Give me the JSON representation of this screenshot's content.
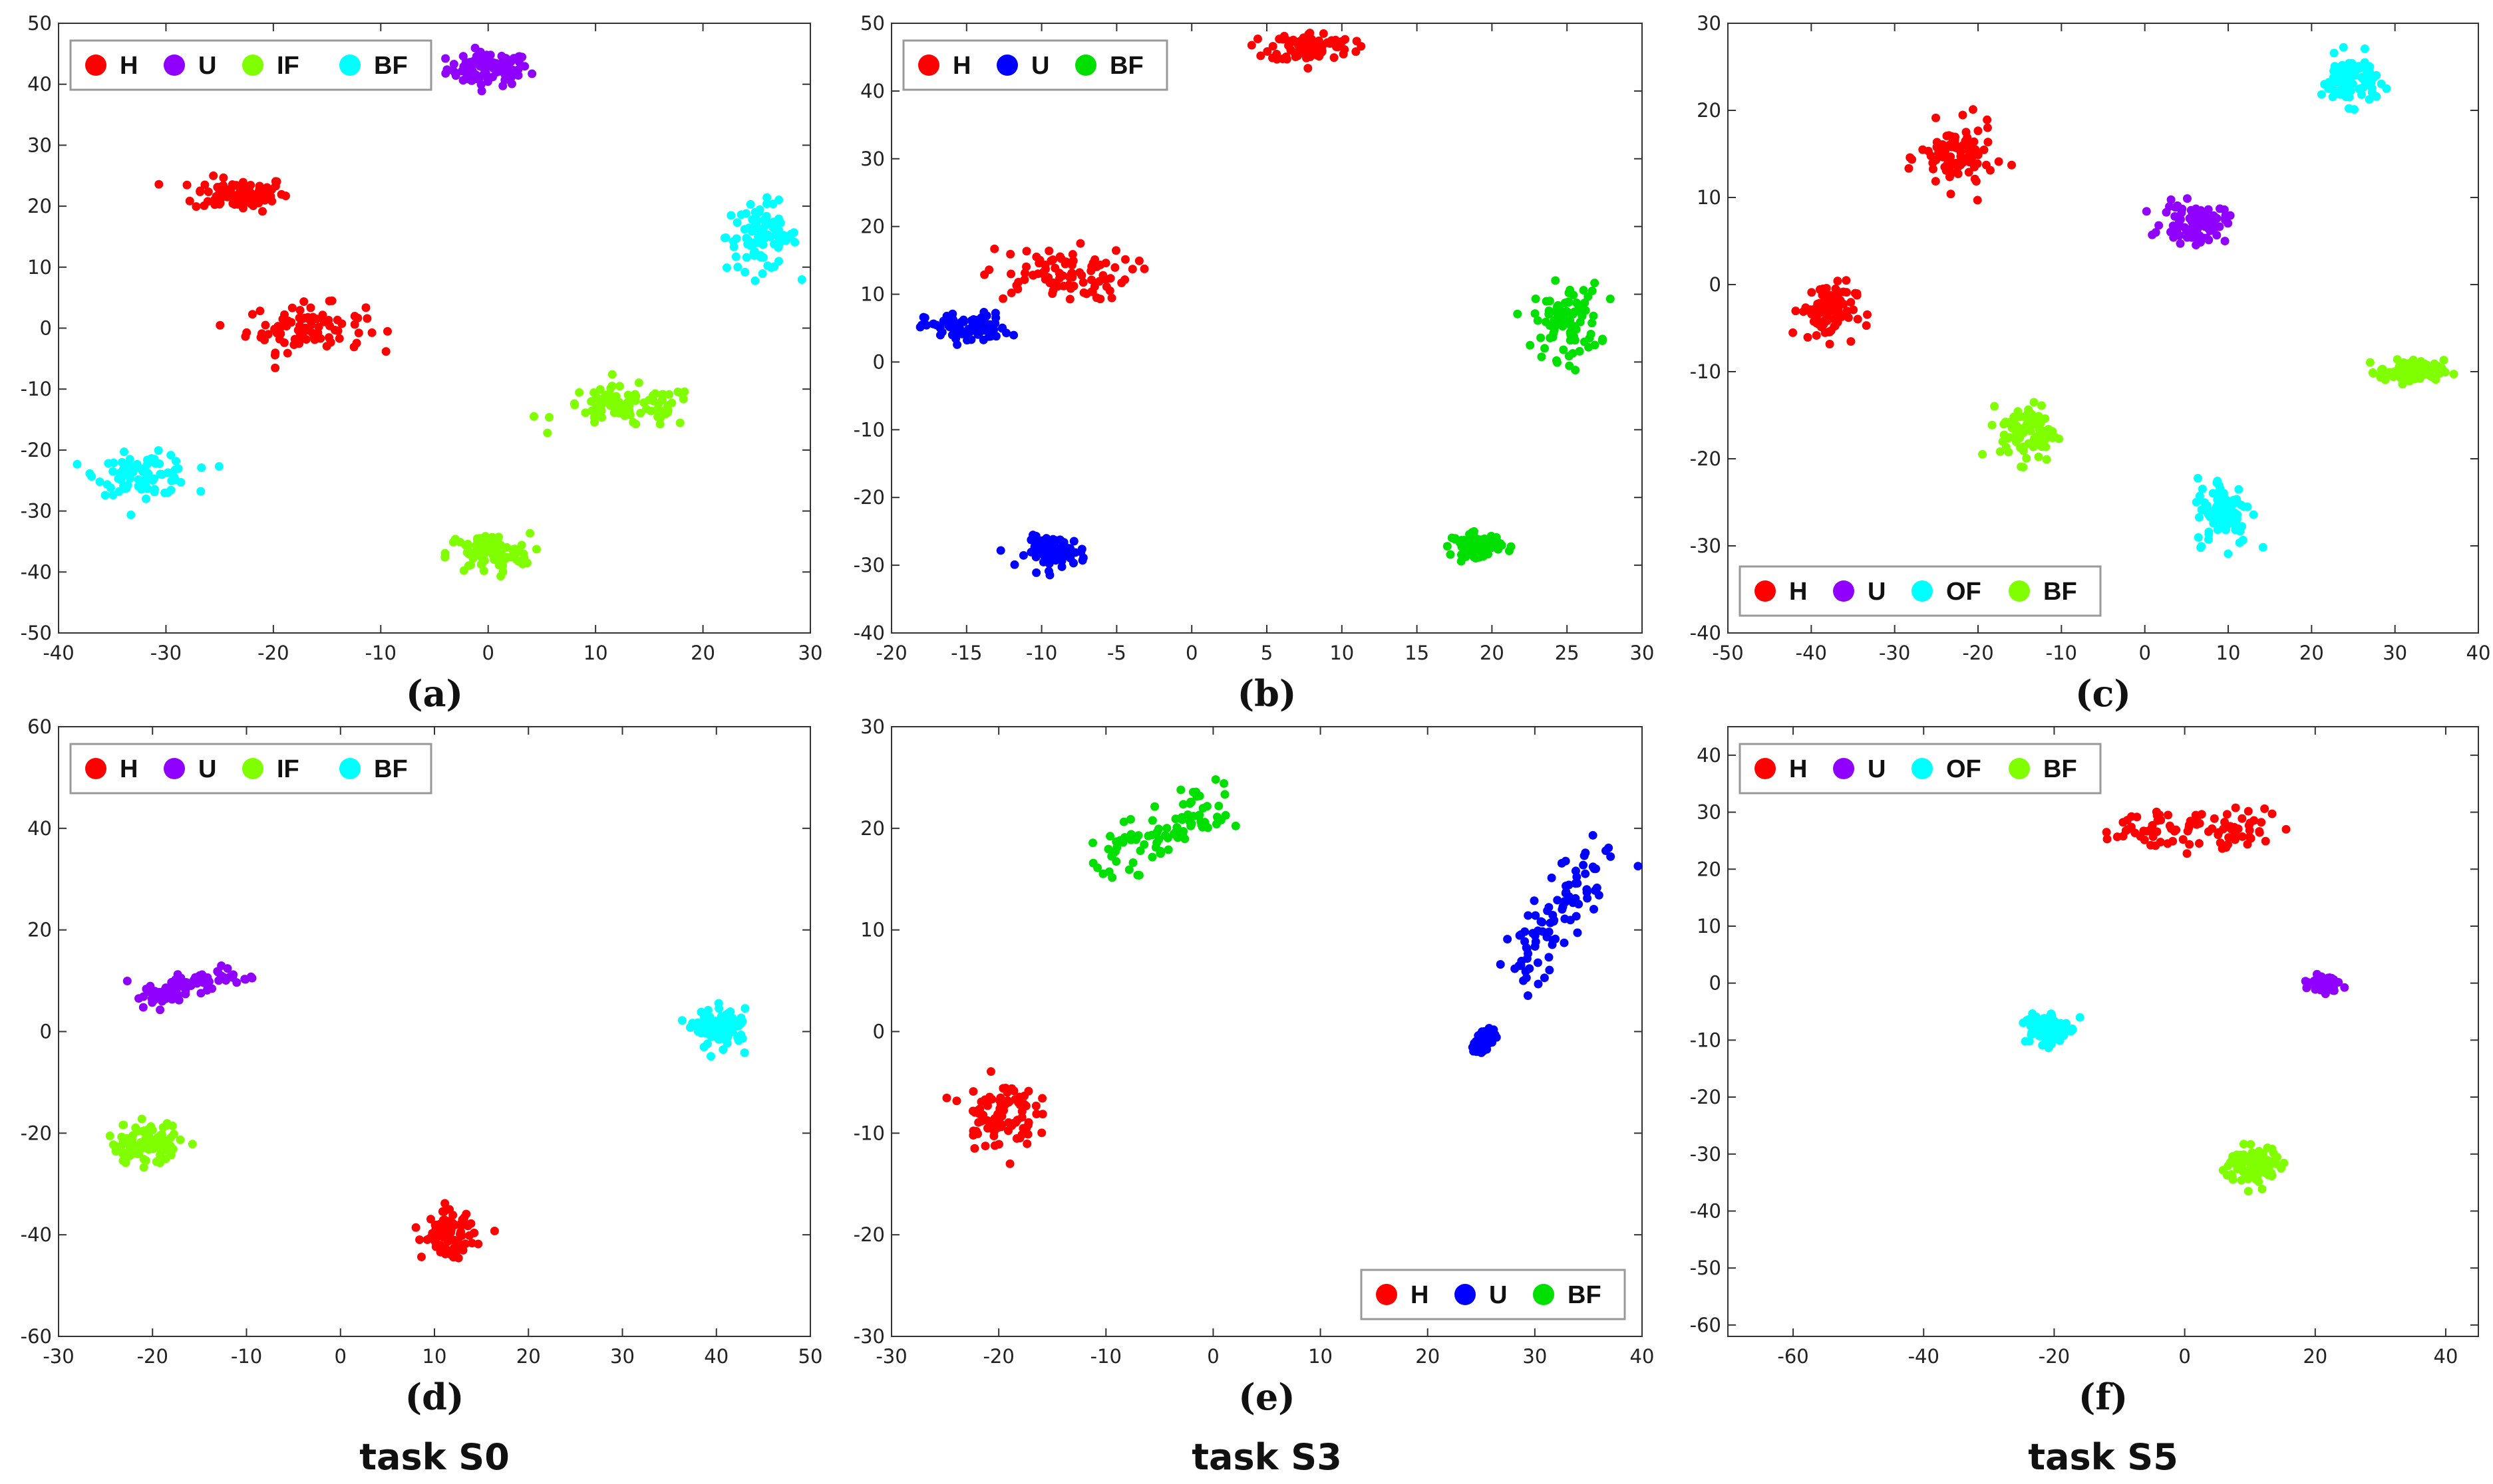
{
  "chart_data": [
    {
      "type": "scatter",
      "panel": "a",
      "caption": "(a)",
      "task_label": "",
      "xlim": [
        -40,
        30
      ],
      "ylim": [
        -50,
        50
      ],
      "xticks": [
        -40,
        -30,
        -20,
        -10,
        0,
        10,
        20,
        30
      ],
      "yticks": [
        -50,
        -40,
        -30,
        -20,
        -10,
        0,
        10,
        20,
        30,
        40,
        50
      ],
      "legend": {
        "placement": "top-left",
        "items": [
          {
            "label": "H",
            "color": "#ff0000"
          },
          {
            "label": "U",
            "color": "#8f00ff"
          },
          {
            "label": "IF",
            "color": "#7fff00"
          },
          {
            "label": "BF",
            "color": "#00ffff"
          }
        ]
      },
      "clusters": [
        {
          "label": "U",
          "color": "#8f00ff",
          "cx": 0,
          "cy": 42.5,
          "sx": 3.5,
          "sy": 2.5
        },
        {
          "label": "H",
          "color": "#ff0000",
          "cx": -23,
          "cy": 22,
          "sx": 4,
          "sy": 2.5
        },
        {
          "label": "H",
          "color": "#ff0000",
          "cx": -17,
          "cy": 0,
          "sx": 5,
          "sy": 3.5
        },
        {
          "label": "BF",
          "color": "#00ffff",
          "cx": 25.5,
          "cy": 15,
          "sx": 3,
          "sy": 5
        },
        {
          "label": "IF",
          "color": "#7fff00",
          "cx": 13,
          "cy": -13,
          "sx": 6,
          "sy": 3
        },
        {
          "label": "BF",
          "color": "#00ffff",
          "cx": -32,
          "cy": -24,
          "sx": 4,
          "sy": 3
        },
        {
          "label": "IF",
          "color": "#7fff00",
          "cx": 0,
          "cy": -37,
          "sx": 3.5,
          "sy": 3
        }
      ]
    },
    {
      "type": "scatter",
      "panel": "b",
      "caption": "(b)",
      "task_label": "",
      "xlim": [
        -20,
        30
      ],
      "ylim": [
        -40,
        50
      ],
      "xticks": [
        -20,
        -15,
        -10,
        -5,
        0,
        5,
        10,
        15,
        20,
        25,
        30
      ],
      "yticks": [
        -40,
        -30,
        -20,
        -10,
        0,
        10,
        20,
        30,
        40,
        50
      ],
      "legend": {
        "placement": "top-left",
        "items": [
          {
            "label": "H",
            "color": "#ff0000"
          },
          {
            "label": "U",
            "color": "#0000ff"
          },
          {
            "label": "BF",
            "color": "#00e000"
          }
        ]
      },
      "clusters": [
        {
          "label": "H",
          "color": "#ff0000",
          "cx": 8,
          "cy": 46.5,
          "sx": 2.5,
          "sy": 2
        },
        {
          "label": "H",
          "color": "#ff0000",
          "cx": -9,
          "cy": 13,
          "sx": 4.5,
          "sy": 3.5
        },
        {
          "label": "U",
          "color": "#0000ff",
          "cx": -15,
          "cy": 5,
          "sx": 2.5,
          "sy": 2
        },
        {
          "label": "BF",
          "color": "#00e000",
          "cx": 25,
          "cy": 6,
          "sx": 2,
          "sy": 5
        },
        {
          "label": "U",
          "color": "#0000ff",
          "cx": -9,
          "cy": -28,
          "sx": 1.8,
          "sy": 2
        },
        {
          "label": "BF",
          "color": "#00e000",
          "cx": 19,
          "cy": -27,
          "sx": 1.5,
          "sy": 1.5
        }
      ]
    },
    {
      "type": "scatter",
      "panel": "c",
      "caption": "(c)",
      "task_label": "",
      "xlim": [
        -50,
        40
      ],
      "ylim": [
        -40,
        30
      ],
      "xticks": [
        -50,
        -40,
        -30,
        -20,
        -10,
        0,
        10,
        20,
        30,
        40
      ],
      "yticks": [
        -40,
        -30,
        -20,
        -10,
        0,
        10,
        20,
        30
      ],
      "legend": {
        "placement": "bottom-left",
        "items": [
          {
            "label": "H",
            "color": "#ff0000"
          },
          {
            "label": "U",
            "color": "#8f00ff"
          },
          {
            "label": "OF",
            "color": "#00ffff"
          },
          {
            "label": "BF",
            "color": "#7fff00"
          }
        ]
      },
      "clusters": [
        {
          "label": "OF",
          "color": "#00ffff",
          "cx": 24.5,
          "cy": 23.5,
          "sx": 3,
          "sy": 2.5
        },
        {
          "label": "H",
          "color": "#ff0000",
          "cx": -22.5,
          "cy": 14.5,
          "sx": 4,
          "sy": 3.5
        },
        {
          "label": "U",
          "color": "#8f00ff",
          "cx": 6,
          "cy": 7,
          "sx": 3.5,
          "sy": 2
        },
        {
          "label": "H",
          "color": "#ff0000",
          "cx": -38,
          "cy": -3,
          "sx": 3,
          "sy": 3
        },
        {
          "label": "BF",
          "color": "#7fff00",
          "cx": 32,
          "cy": -10,
          "sx": 3.5,
          "sy": 1.2
        },
        {
          "label": "BF",
          "color": "#7fff00",
          "cx": -14,
          "cy": -17,
          "sx": 3,
          "sy": 3
        },
        {
          "label": "OF",
          "color": "#00ffff",
          "cx": 9.5,
          "cy": -26,
          "sx": 3,
          "sy": 3.5
        }
      ]
    },
    {
      "type": "scatter",
      "panel": "d",
      "caption": "(d)",
      "task_label": "task S0",
      "xlim": [
        -30,
        50
      ],
      "ylim": [
        -60,
        60
      ],
      "xticks": [
        -30,
        -20,
        -10,
        0,
        10,
        20,
        30,
        40,
        50
      ],
      "yticks": [
        -60,
        -40,
        -20,
        0,
        20,
        40,
        60
      ],
      "legend": {
        "placement": "top-left",
        "items": [
          {
            "label": "H",
            "color": "#ff0000"
          },
          {
            "label": "U",
            "color": "#8f00ff"
          },
          {
            "label": "IF",
            "color": "#7fff00"
          },
          {
            "label": "BF",
            "color": "#00ffff"
          }
        ]
      },
      "clusters": [
        {
          "label": "U",
          "color": "#8f00ff",
          "x0": -21,
          "y0": 6,
          "x1": -11,
          "y1": 12,
          "spread": 1.2
        },
        {
          "label": "BF",
          "color": "#00ffff",
          "cx": 40.5,
          "cy": 0.5,
          "sx": 2.5,
          "sy": 3.5
        },
        {
          "label": "IF",
          "color": "#7fff00",
          "cx": -21,
          "cy": -22,
          "sx": 3.5,
          "sy": 3.5
        },
        {
          "label": "H",
          "color": "#ff0000",
          "cx": 11.5,
          "cy": -40,
          "sx": 2.5,
          "sy": 4
        }
      ]
    },
    {
      "type": "scatter",
      "panel": "e",
      "caption": "(e)",
      "task_label": "task S3",
      "xlim": [
        -30,
        40
      ],
      "ylim": [
        -30,
        30
      ],
      "xticks": [
        -30,
        -20,
        -10,
        0,
        10,
        20,
        30,
        40
      ],
      "yticks": [
        -30,
        -20,
        -10,
        0,
        10,
        20,
        30
      ],
      "legend": {
        "placement": "bottom-right",
        "items": [
          {
            "label": "H",
            "color": "#ff0000"
          },
          {
            "label": "U",
            "color": "#0000ff"
          },
          {
            "label": "BF",
            "color": "#00e000"
          }
        ]
      },
      "clusters": [
        {
          "label": "BF",
          "color": "#00e000",
          "x0": -10,
          "y0": 16.5,
          "x1": 0,
          "y1": 22.5,
          "spread": 1.3
        },
        {
          "label": "U",
          "color": "#0000ff",
          "x0": 28,
          "y0": 5,
          "x1": 36,
          "y1": 17.5,
          "spread": 1.2
        },
        {
          "label": "U",
          "color": "#0000ff",
          "x0": 24.5,
          "y0": -2,
          "x1": 26,
          "y1": 0,
          "spread": 0.3
        },
        {
          "label": "H",
          "color": "#ff0000",
          "cx": -20,
          "cy": -8,
          "sx": 3,
          "sy": 3
        }
      ]
    },
    {
      "type": "scatter",
      "panel": "f",
      "caption": "(f)",
      "task_label": "task S5",
      "xlim": [
        -70,
        45
      ],
      "ylim": [
        -62,
        45
      ],
      "xticks": [
        -60,
        -40,
        -20,
        0,
        20,
        40
      ],
      "yticks": [
        -60,
        -50,
        -40,
        -30,
        -20,
        -10,
        0,
        10,
        20,
        30,
        40
      ],
      "legend": {
        "placement": "top-left",
        "items": [
          {
            "label": "H",
            "color": "#ff0000"
          },
          {
            "label": "U",
            "color": "#8f00ff"
          },
          {
            "label": "OF",
            "color": "#00ffff"
          },
          {
            "label": "BF",
            "color": "#7fff00"
          }
        ]
      },
      "clusters": [
        {
          "label": "H",
          "color": "#ff0000",
          "x0": -10,
          "y0": 27,
          "x1": 14,
          "y1": 27,
          "spread": 1.8
        },
        {
          "label": "U",
          "color": "#8f00ff",
          "cx": 21.5,
          "cy": 0,
          "sx": 2,
          "sy": 1.2
        },
        {
          "label": "OF",
          "color": "#00ffff",
          "cx": -21.5,
          "cy": -8,
          "sx": 3,
          "sy": 3
        },
        {
          "label": "BF",
          "color": "#7fff00",
          "cx": 10.5,
          "cy": -32,
          "sx": 4,
          "sy": 3
        }
      ]
    }
  ]
}
